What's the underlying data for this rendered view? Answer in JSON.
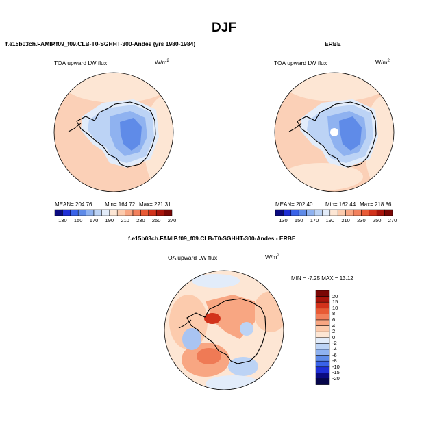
{
  "title": "DJF",
  "panels": [
    {
      "id": "model",
      "header": "f.e15b03ch.FAMIP.f09_f09.CLB-T0-SGHHT-300-Andes (yrs 1980-1984)",
      "variable": "TOA upward LW flux",
      "units_base": "W/m",
      "units_exp": "2",
      "stats": {
        "mean": "MEAN= 204.76",
        "min": "Min= 164.72",
        "max": "Max= 221.31"
      }
    },
    {
      "id": "obs",
      "header": "ERBE",
      "variable": "TOA upward LW flux",
      "units_base": "W/m",
      "units_exp": "2",
      "stats": {
        "mean": "MEAN= 202.40",
        "min": "Min= 162.44",
        "max": "Max= 218.86"
      }
    }
  ],
  "colorbar_abs": {
    "labels": [
      "130",
      "150",
      "170",
      "190",
      "210",
      "230",
      "250",
      "270"
    ],
    "colors": [
      "#0a0a80",
      "#1f2fd6",
      "#3a63e8",
      "#5f8be8",
      "#8fb2f0",
      "#bcd3f5",
      "#e2ecfa",
      "#fde6d4",
      "#fccbad",
      "#f8a682",
      "#f2805c",
      "#e85a35",
      "#d2321b",
      "#a8150c",
      "#7a0705"
    ]
  },
  "diff_panel": {
    "header": "f.e15b03ch.FAMIP.f09_f09.CLB-T0-SGHHT-300-Andes - ERBE",
    "variable": "TOA upward LW flux",
    "units_base": "W/m",
    "units_exp": "2",
    "minmax": "MIN =  -7.25 MAX =  13.12",
    "colorbar_labels": [
      "20",
      "15",
      "10",
      "8",
      "6",
      "4",
      "2",
      "0",
      "-2",
      "-4",
      "-6",
      "-8",
      "-10",
      "-15",
      "-20"
    ],
    "colorbar_colors": [
      "#7a0705",
      "#a8150c",
      "#d2321b",
      "#e85a35",
      "#f2805c",
      "#f8a682",
      "#fccbad",
      "#fde6d4",
      "#e2ecfa",
      "#bcd3f5",
      "#8fb2f0",
      "#5f8be8",
      "#3a63e8",
      "#1f2fd6",
      "#0a0a80",
      "#05054a"
    ]
  },
  "map_colors": {
    "ocean_warm": "#fbd0b7",
    "ocean_pale": "#fde6d4",
    "ice_edge": "#e2ecfa",
    "plateau_light": "#bcd3f5",
    "plateau_mid": "#8fb2f0",
    "plateau_deep": "#5f8be8",
    "diff_red": "#ef7a55",
    "diff_deep_red": "#d2321b",
    "diff_blue": "#a9c4f2"
  }
}
